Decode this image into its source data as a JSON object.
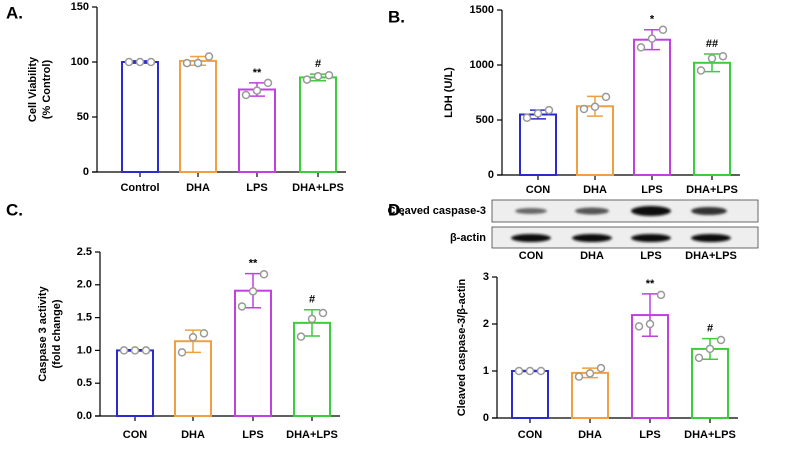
{
  "chart_data": [
    {
      "type": "bar",
      "panel": "A.",
      "ylabel": [
        "Cell Viability",
        "(% Control)"
      ],
      "categories": [
        "Control",
        "DHA",
        "LPS",
        "DHA+LPS"
      ],
      "values": [
        100,
        101,
        75,
        86
      ],
      "errors": [
        1,
        4,
        6,
        3
      ],
      "points": [
        [
          100,
          100,
          100
        ],
        [
          99,
          99,
          105
        ],
        [
          70,
          74,
          81
        ],
        [
          84,
          87,
          88
        ]
      ],
      "annotations": [
        null,
        null,
        "**",
        "#"
      ],
      "colors": [
        "#2b2bcc",
        "#f0a040",
        "#c040e0",
        "#3ccc3c"
      ],
      "ylim": [
        0,
        150
      ],
      "yticks": [
        0,
        50,
        100,
        150
      ]
    },
    {
      "type": "bar",
      "panel": "B.",
      "ylabel": [
        "LDH (U/L)"
      ],
      "categories": [
        "CON",
        "DHA",
        "LPS",
        "DHA+LPS"
      ],
      "values": [
        550,
        625,
        1230,
        1020
      ],
      "errors": [
        40,
        90,
        90,
        80
      ],
      "points": [
        [
          520,
          560,
          590
        ],
        [
          600,
          620,
          710
        ],
        [
          1160,
          1240,
          1320
        ],
        [
          950,
          1060,
          1080
        ]
      ],
      "annotations": [
        null,
        null,
        "*",
        "##"
      ],
      "colors": [
        "#2b2bcc",
        "#f0a040",
        "#c040e0",
        "#3ccc3c"
      ],
      "ylim": [
        0,
        1500
      ],
      "yticks": [
        0,
        500,
        1000,
        1500
      ]
    },
    {
      "type": "bar",
      "panel": "C.",
      "ylabel": [
        "Caspase 3 activity",
        "(fold change)"
      ],
      "categories": [
        "CON",
        "DHA",
        "LPS",
        "DHA+LPS"
      ],
      "values": [
        1.0,
        1.14,
        1.91,
        1.42
      ],
      "errors": [
        0.01,
        0.17,
        0.26,
        0.2
      ],
      "points": [
        [
          1.0,
          1.0,
          1.0
        ],
        [
          0.97,
          1.2,
          1.26
        ],
        [
          1.67,
          1.9,
          2.16
        ],
        [
          1.21,
          1.48,
          1.57
        ]
      ],
      "annotations": [
        null,
        null,
        "**",
        "#"
      ],
      "colors": [
        "#2b2bcc",
        "#f0a040",
        "#c040e0",
        "#3ccc3c"
      ],
      "ylim": [
        0,
        2.5
      ],
      "yticks": [
        {
          "value": 0,
          "label": "0.0"
        },
        0.5,
        {
          "value": 1,
          "label": "1.0"
        },
        1.5,
        {
          "value": 2,
          "label": "2.0"
        },
        2.5
      ]
    },
    {
      "type": "bar",
      "panel": "D.",
      "ylabel": [
        "Cleaved caspase-3/β-actin"
      ],
      "blot": {
        "rows": [
          "Cleaved caspase-3",
          "β-actin"
        ],
        "lanes": [
          "CON",
          "DHA",
          "LPS",
          "DHA+LPS"
        ]
      },
      "categories": [
        "CON",
        "DHA",
        "LPS",
        "DHA+LPS"
      ],
      "values": [
        1.0,
        0.96,
        2.19,
        1.47
      ],
      "errors": [
        0.01,
        0.1,
        0.45,
        0.22
      ],
      "points": [
        [
          1.0,
          1.0,
          1.0
        ],
        [
          0.88,
          0.95,
          1.06
        ],
        [
          1.95,
          2.0,
          2.62
        ],
        [
          1.28,
          1.47,
          1.66
        ]
      ],
      "annotations": [
        null,
        null,
        "**",
        "#"
      ],
      "colors": [
        "#2b2bcc",
        "#f0a040",
        "#c040e0",
        "#3ccc3c"
      ],
      "ylim": [
        0,
        3
      ],
      "yticks": [
        0,
        1,
        2,
        3
      ]
    }
  ]
}
